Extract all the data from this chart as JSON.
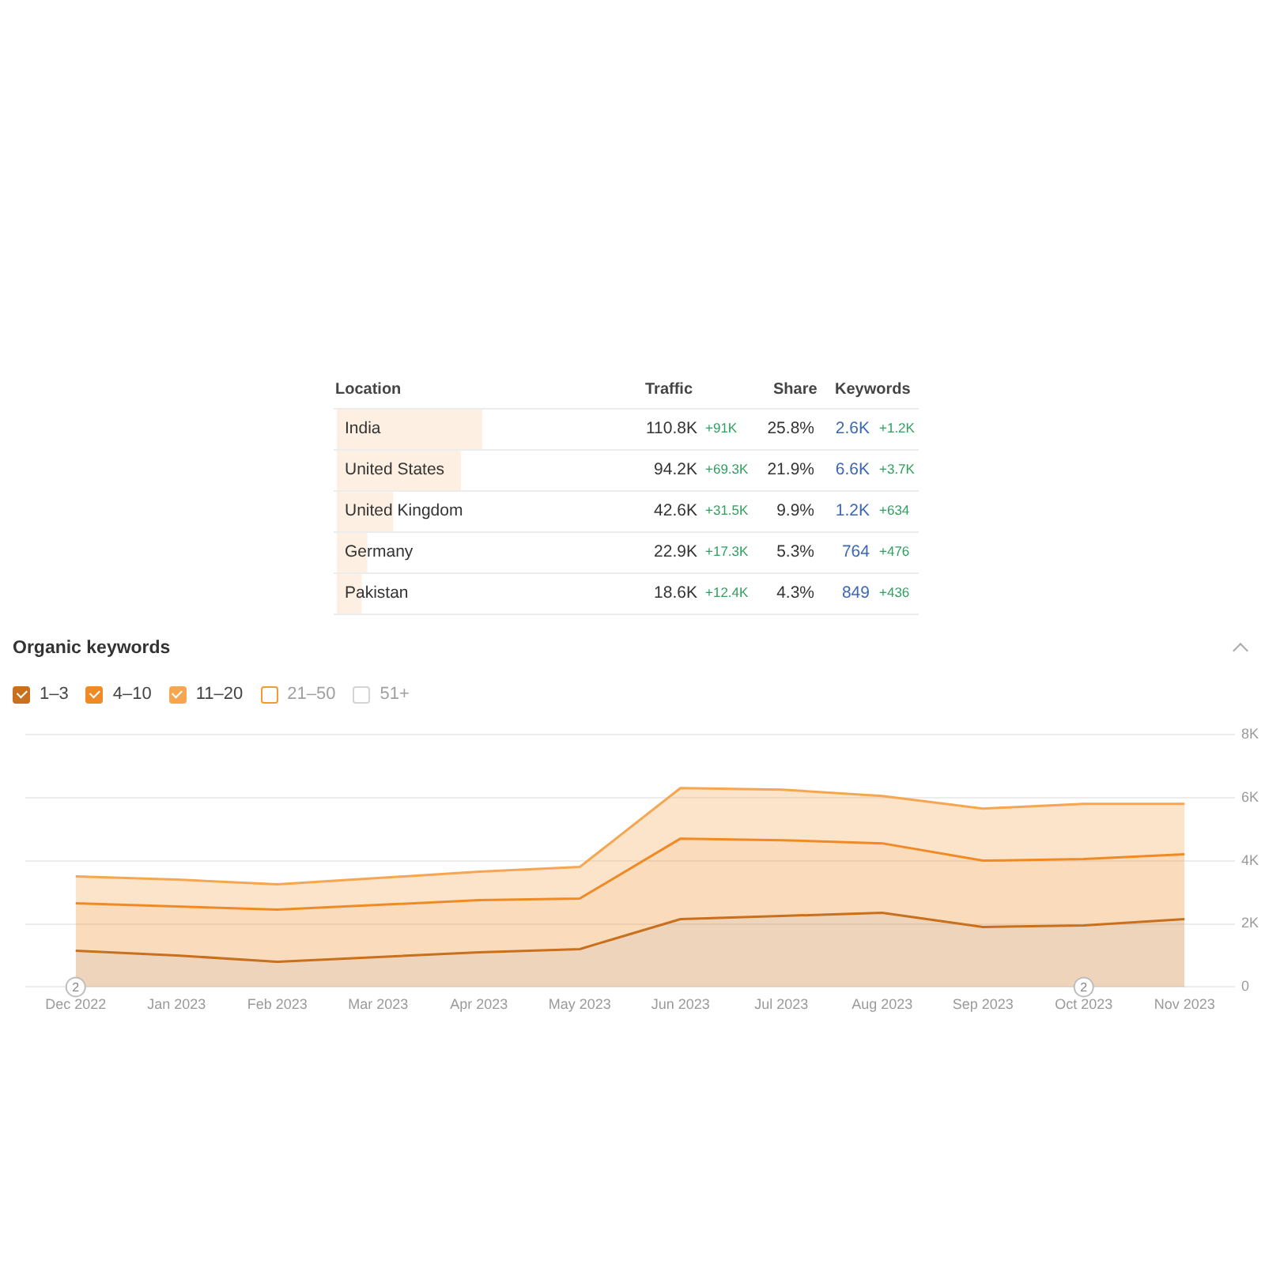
{
  "chart_data": [
    {
      "type": "bar",
      "orientation": "horizontal",
      "ylabel": "Location",
      "categories": [
        "India",
        "United States",
        "United Kingdom",
        "Germany",
        "Pakistan"
      ],
      "values": [
        110800,
        94200,
        42600,
        22900,
        18600
      ],
      "color": "#fdf0e3",
      "value_labels": [
        "110.8K",
        "94.2K",
        "42.6K",
        "22.9K",
        "18.6K"
      ],
      "annotations": [
        "Traffic",
        "Share",
        "Keywords",
        "+91K",
        "25.8%",
        "2.6K",
        "+1.2K",
        "+69.3K",
        "21.9%",
        "6.6K",
        "+3.7K",
        "+31.5K",
        "9.9%",
        "1.2K",
        "+634",
        "+17.3K",
        "5.3%",
        "764",
        "+476",
        "+12.4K",
        "4.3%",
        "849",
        "+436"
      ]
    },
    {
      "type": "area",
      "title": "Organic keywords",
      "stacked": true,
      "categories": [
        "Dec 2022",
        "Jan 2023",
        "Feb 2023",
        "Mar 2023",
        "Apr 2023",
        "May 2023",
        "Jun 2023",
        "Jul 2023",
        "Aug 2023",
        "Sep 2023",
        "Oct 2023",
        "Nov 2023"
      ],
      "series": [
        {
          "name": "1–3",
          "color": "#c8701e",
          "values": [
            1150,
            1000,
            800,
            950,
            1100,
            1200,
            2150,
            2250,
            2350,
            1900,
            1950,
            2150
          ]
        },
        {
          "name": "4–10",
          "color": "#f08a24",
          "values": [
            1500,
            1550,
            1650,
            1650,
            1650,
            1600,
            2550,
            2400,
            2200,
            2100,
            2100,
            2050
          ]
        },
        {
          "name": "11–20",
          "color": "#f6a650",
          "values": [
            850,
            850,
            800,
            850,
            900,
            1000,
            1600,
            1600,
            1500,
            1650,
            1750,
            1600
          ]
        },
        {
          "name": "21–50",
          "color": "#f39a33",
          "values": [
            null,
            null,
            null,
            null,
            null,
            null,
            null,
            null,
            null,
            null,
            null,
            null
          ]
        },
        {
          "name": "51+",
          "color": "#d4d4d4",
          "values": [
            null,
            null,
            null,
            null,
            null,
            null,
            null,
            null,
            null,
            null,
            null,
            null
          ]
        }
      ],
      "ylim": [
        0,
        8000
      ],
      "yticks": [
        0,
        {
          "value": 2000,
          "label": "2K"
        },
        {
          "value": 4000,
          "label": "4K"
        },
        {
          "value": 6000,
          "label": "6K"
        },
        {
          "value": 8000,
          "label": "8K"
        }
      ],
      "grid": "y",
      "legend": "top left",
      "annotations": [
        {
          "text": "2",
          "x": "Dec 2022",
          "y": 0
        },
        {
          "text": "2",
          "x": "Oct 2023",
          "y": 0
        }
      ]
    }
  ]
}
